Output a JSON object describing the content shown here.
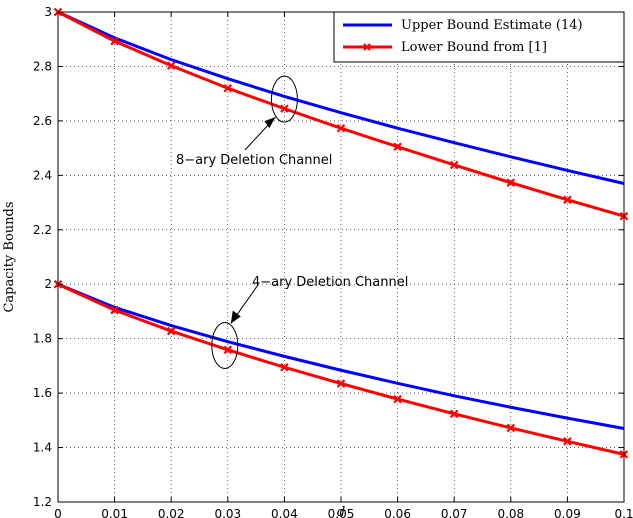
{
  "chart_data": {
    "type": "line",
    "xlabel": "d",
    "ylabel": "Capacity Bounds",
    "xlim": [
      0,
      0.1
    ],
    "ylim": [
      1.2,
      3
    ],
    "x_ticks": [
      "0",
      "0.01",
      "0.02",
      "0.03",
      "0.04",
      "0.05",
      "0.06",
      "0.07",
      "0.08",
      "0.09",
      "0.1"
    ],
    "y_ticks": [
      "1.2",
      "1.4",
      "1.6",
      "1.8",
      "2",
      "2.2",
      "2.4",
      "2.6",
      "2.8",
      "3"
    ],
    "grid": "dotted",
    "legend_position": "top-right",
    "legend": [
      {
        "label": "Upper Bound Estimate (14)",
        "color": "#0000ff",
        "marker": "none"
      },
      {
        "label": "Lower Bound from [1]",
        "color": "#ff0000",
        "marker": "x"
      }
    ],
    "x": [
      0,
      0.01,
      0.02,
      0.03,
      0.04,
      0.05,
      0.06,
      0.07,
      0.08,
      0.09,
      0.1
    ],
    "series": [
      {
        "group": "8-ary",
        "kind": "upper",
        "color": "#0000ff",
        "values": [
          3.0,
          2.905,
          2.825,
          2.755,
          2.69,
          2.63,
          2.573,
          2.52,
          2.468,
          2.418,
          2.37
        ]
      },
      {
        "group": "8-ary",
        "kind": "lower",
        "color": "#ff0000",
        "values": [
          3.0,
          2.893,
          2.803,
          2.72,
          2.645,
          2.573,
          2.505,
          2.438,
          2.373,
          2.31,
          2.25
        ]
      },
      {
        "group": "4-ary",
        "kind": "upper",
        "color": "#0000ff",
        "values": [
          2.0,
          1.915,
          1.848,
          1.789,
          1.735,
          1.684,
          1.636,
          1.59,
          1.548,
          1.508,
          1.47
        ]
      },
      {
        "group": "4-ary",
        "kind": "lower",
        "color": "#ff0000",
        "values": [
          2.0,
          1.905,
          1.828,
          1.759,
          1.695,
          1.635,
          1.578,
          1.524,
          1.472,
          1.423,
          1.375
        ]
      }
    ],
    "annotations": [
      {
        "text": "8−ary Deletion Channel",
        "x": 0.04,
        "y": 2.68
      },
      {
        "text": "4−ary Deletion Channel",
        "x": 0.03,
        "y": 1.775
      }
    ]
  }
}
